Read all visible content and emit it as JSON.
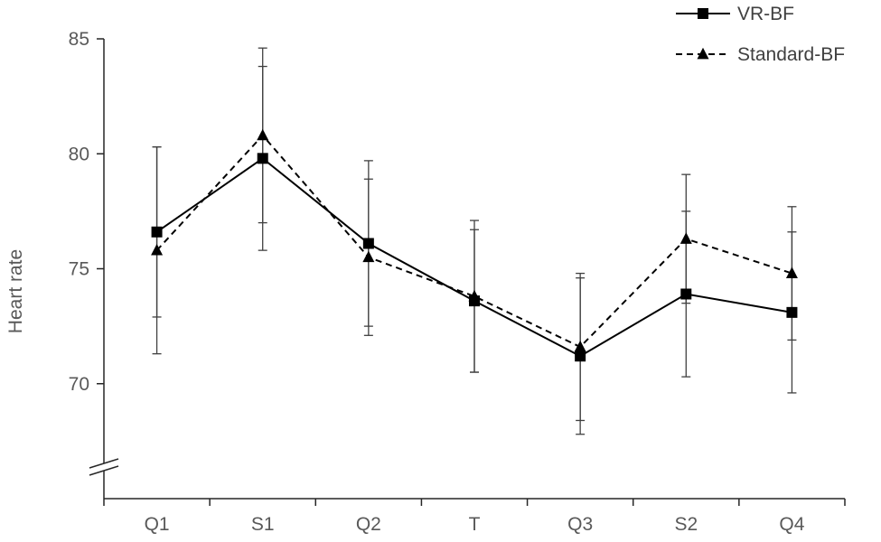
{
  "chart_data": {
    "type": "line",
    "title": "",
    "xlabel": "",
    "ylabel": "Heart rate",
    "categories": [
      "Q1",
      "S1",
      "Q2",
      "T",
      "Q3",
      "S2",
      "Q4"
    ],
    "ylim": [
      65,
      85
    ],
    "yticks": [
      70,
      75,
      80,
      85
    ],
    "y_axis_break": true,
    "grid": false,
    "legend_position": "top-right",
    "series": [
      {
        "name": "VR-BF",
        "marker": "square",
        "line_style": "solid",
        "color": "#000000",
        "values": [
          76.6,
          79.8,
          76.1,
          73.6,
          71.2,
          73.9,
          73.1
        ],
        "error": [
          3.7,
          4.0,
          3.6,
          3.1,
          3.4,
          3.6,
          3.5
        ]
      },
      {
        "name": "Standard-BF",
        "marker": "triangle",
        "line_style": "dashed",
        "color": "#000000",
        "values": [
          75.8,
          80.8,
          75.5,
          73.8,
          71.6,
          76.3,
          74.8
        ],
        "error": [
          4.5,
          3.8,
          3.4,
          3.3,
          3.2,
          2.8,
          2.9
        ]
      }
    ],
    "colors": {
      "axis": "#262626",
      "text": "#595959",
      "error_bar": "#404040"
    }
  }
}
